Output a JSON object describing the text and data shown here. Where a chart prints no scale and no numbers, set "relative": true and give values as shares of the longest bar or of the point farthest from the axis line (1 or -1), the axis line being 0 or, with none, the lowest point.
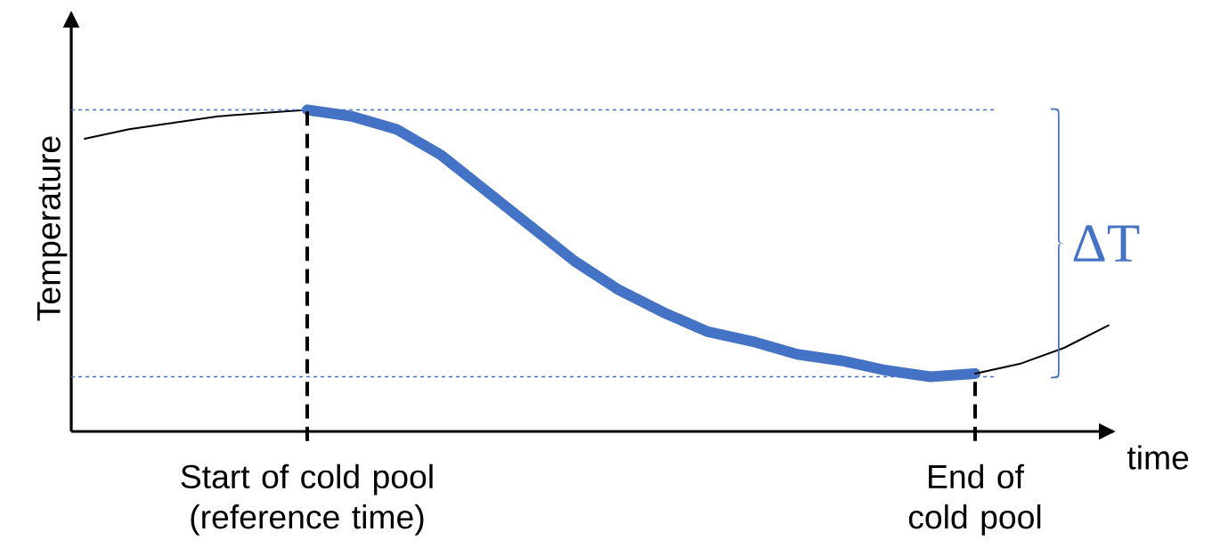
{
  "chart_data": {
    "type": "line",
    "relative": true,
    "xlabel": "time",
    "ylabel": "Temperature",
    "categories": [
      null,
      null,
      null,
      null,
      null,
      null,
      null,
      null,
      null,
      null,
      null,
      null,
      null,
      null,
      null,
      null,
      null,
      null,
      null,
      null,
      null,
      null,
      null,
      null
    ],
    "series": [
      {
        "color": "#000000",
        "values": [
          0.91,
          0.94,
          0.96,
          0.98,
          0.99,
          1.0,
          null,
          null,
          null,
          null,
          null,
          null,
          null,
          null,
          null,
          null,
          null,
          null,
          null,
          null,
          null,
          null,
          null,
          null
        ]
      },
      {
        "color": "#4472c4",
        "values": [
          null,
          null,
          null,
          null,
          null,
          1.0,
          0.98,
          0.94,
          0.86,
          0.75,
          0.64,
          0.53,
          0.44,
          0.37,
          0.31,
          0.28,
          0.24,
          0.22,
          0.19,
          0.17,
          0.18,
          null,
          null,
          null
        ]
      },
      {
        "color": "#000000",
        "values": [
          null,
          null,
          null,
          null,
          null,
          null,
          null,
          null,
          null,
          null,
          null,
          null,
          null,
          null,
          null,
          null,
          null,
          null,
          null,
          null,
          0.18,
          0.21,
          0.26,
          0.33
        ]
      }
    ],
    "ref_lines": [
      {
        "axis": "y",
        "value": 1.0,
        "color": "#4472c4",
        "line_style": "dashed"
      },
      {
        "axis": "y",
        "value": 0.17,
        "color": "#4472c4",
        "line_style": "dashed"
      }
    ],
    "annotations": [
      "Start of cold pool (reference time)",
      "End of cold pool",
      "ΔT"
    ],
    "marker": "none",
    "line_style": "solid"
  }
}
